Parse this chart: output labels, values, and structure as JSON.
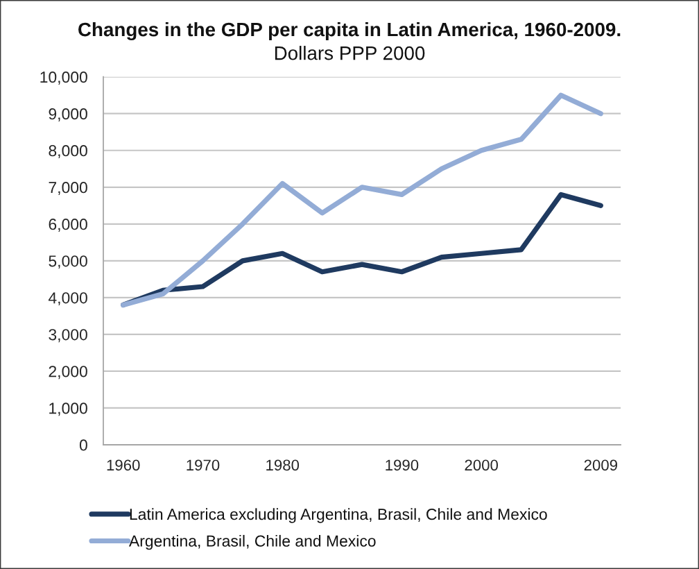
{
  "chart_data": {
    "type": "line",
    "title": "Changes in the GDP per capita in Latin America, 1960-2009.",
    "subtitle": "Dollars PPP 2000",
    "categories": [
      "1960",
      null,
      "1970",
      null,
      "1980",
      null,
      null,
      "1990",
      null,
      "2000",
      null,
      null,
      "2009"
    ],
    "series": [
      {
        "name": "Latin America excluding Argentina, Brasil, Chile and Mexico",
        "color": "#1f3a60",
        "values": [
          3800,
          4200,
          4300,
          5000,
          5200,
          4700,
          4900,
          4700,
          5100,
          5200,
          5300,
          6800,
          6500
        ]
      },
      {
        "name": "Argentina, Brasil, Chile and Mexico",
        "color": "#93acd6",
        "values": [
          3800,
          4100,
          5000,
          6000,
          7100,
          6300,
          7000,
          6800,
          7500,
          8000,
          8300,
          9500,
          9000
        ]
      }
    ],
    "ylim": [
      0,
      10000
    ],
    "yticks": [
      0,
      {
        "value": 1000,
        "label": "1,000"
      },
      {
        "value": 2000,
        "label": "2,000"
      },
      {
        "value": 3000,
        "label": "3,000"
      },
      {
        "value": 4000,
        "label": "4,000"
      },
      {
        "value": 5000,
        "label": "5,000"
      },
      {
        "value": 6000,
        "label": "6,000"
      },
      {
        "value": 7000,
        "label": "7,000"
      },
      {
        "value": 8000,
        "label": "8,000"
      },
      {
        "value": 9000,
        "label": "9,000"
      },
      {
        "value": 10000,
        "label": "10,000"
      }
    ],
    "grid": "y",
    "legend": "bottom"
  }
}
